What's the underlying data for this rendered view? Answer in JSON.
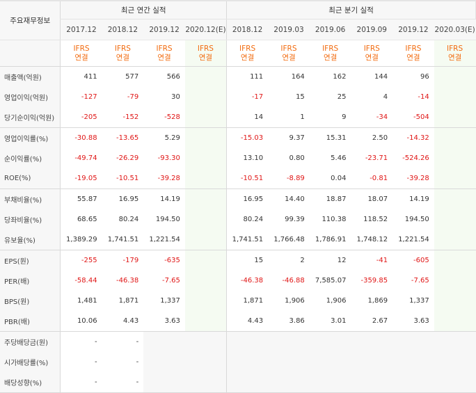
{
  "header": {
    "row_label": "주요재무정보",
    "annual_group": "최근 연간 실적",
    "quarter_group": "최근 분기 실적"
  },
  "periods": {
    "annual": [
      "2017.12",
      "2018.12",
      "2019.12",
      "2020.12(E)"
    ],
    "quarter": [
      "2018.12",
      "2019.03",
      "2019.06",
      "2019.09",
      "2019.12",
      "2020.03(E)"
    ]
  },
  "ifrs": {
    "line1": "IFRS",
    "line2": "연결"
  },
  "rows": [
    {
      "label": "매출액(억원)",
      "annual": [
        "411",
        "577",
        "566",
        ""
      ],
      "quarter": [
        "111",
        "164",
        "162",
        "144",
        "96",
        ""
      ]
    },
    {
      "label": "영업이익(억원)",
      "annual": [
        "-127",
        "-79",
        "30",
        ""
      ],
      "quarter": [
        "-17",
        "15",
        "25",
        "4",
        "-14",
        ""
      ]
    },
    {
      "label": "당기순이익(억원)",
      "annual": [
        "-205",
        "-152",
        "-528",
        ""
      ],
      "quarter": [
        "14",
        "1",
        "9",
        "-34",
        "-504",
        ""
      ]
    },
    {
      "label": "영업이익률(%)",
      "annual": [
        "-30.88",
        "-13.65",
        "5.29",
        ""
      ],
      "quarter": [
        "-15.03",
        "9.37",
        "15.31",
        "2.50",
        "-14.32",
        ""
      ]
    },
    {
      "label": "순이익률(%)",
      "annual": [
        "-49.74",
        "-26.29",
        "-93.30",
        ""
      ],
      "quarter": [
        "13.10",
        "0.80",
        "5.46",
        "-23.71",
        "-524.26",
        ""
      ]
    },
    {
      "label": "ROE(%)",
      "annual": [
        "-19.05",
        "-10.51",
        "-39.28",
        ""
      ],
      "quarter": [
        "-10.51",
        "-8.89",
        "0.04",
        "-0.81",
        "-39.28",
        ""
      ]
    },
    {
      "label": "부채비율(%)",
      "annual": [
        "55.87",
        "16.95",
        "14.19",
        ""
      ],
      "quarter": [
        "16.95",
        "14.40",
        "18.87",
        "18.07",
        "14.19",
        ""
      ]
    },
    {
      "label": "당좌비율(%)",
      "annual": [
        "68.65",
        "80.24",
        "194.50",
        ""
      ],
      "quarter": [
        "80.24",
        "99.39",
        "110.38",
        "118.52",
        "194.50",
        ""
      ]
    },
    {
      "label": "유보율(%)",
      "annual": [
        "1,389.29",
        "1,741.51",
        "1,221.54",
        ""
      ],
      "quarter": [
        "1,741.51",
        "1,766.48",
        "1,786.91",
        "1,748.12",
        "1,221.54",
        ""
      ]
    },
    {
      "label": "EPS(원)",
      "annual": [
        "-255",
        "-179",
        "-635",
        ""
      ],
      "quarter": [
        "15",
        "2",
        "12",
        "-41",
        "-605",
        ""
      ]
    },
    {
      "label": "PER(배)",
      "annual": [
        "-58.44",
        "-46.38",
        "-7.65",
        ""
      ],
      "quarter": [
        "-46.38",
        "-46.88",
        "7,585.07",
        "-359.85",
        "-7.65",
        ""
      ]
    },
    {
      "label": "BPS(원)",
      "annual": [
        "1,481",
        "1,871",
        "1,337",
        ""
      ],
      "quarter": [
        "1,871",
        "1,906",
        "1,906",
        "1,869",
        "1,337",
        ""
      ]
    },
    {
      "label": "PBR(배)",
      "annual": [
        "10.06",
        "4.43",
        "3.63",
        ""
      ],
      "quarter": [
        "4.43",
        "3.86",
        "3.01",
        "2.67",
        "3.63",
        ""
      ]
    },
    {
      "label": "주당배당금(원)",
      "annual": [
        "-",
        "-",
        null,
        null
      ],
      "quarter": [
        null,
        null,
        null,
        null,
        null,
        null
      ]
    },
    {
      "label": "시가배당률(%)",
      "annual": [
        "-",
        "-",
        null,
        null
      ],
      "quarter": [
        null,
        null,
        null,
        null,
        null,
        null
      ]
    },
    {
      "label": "배당성향(%)",
      "annual": [
        "-",
        "-",
        null,
        null
      ],
      "quarter": [
        null,
        null,
        null,
        null,
        null,
        null
      ]
    }
  ],
  "colors": {
    "negative": "#e01515",
    "ifrs": "#f26b0f",
    "estimate_bg": "#f5fbf2",
    "header_bg": "#f7f7f7"
  }
}
